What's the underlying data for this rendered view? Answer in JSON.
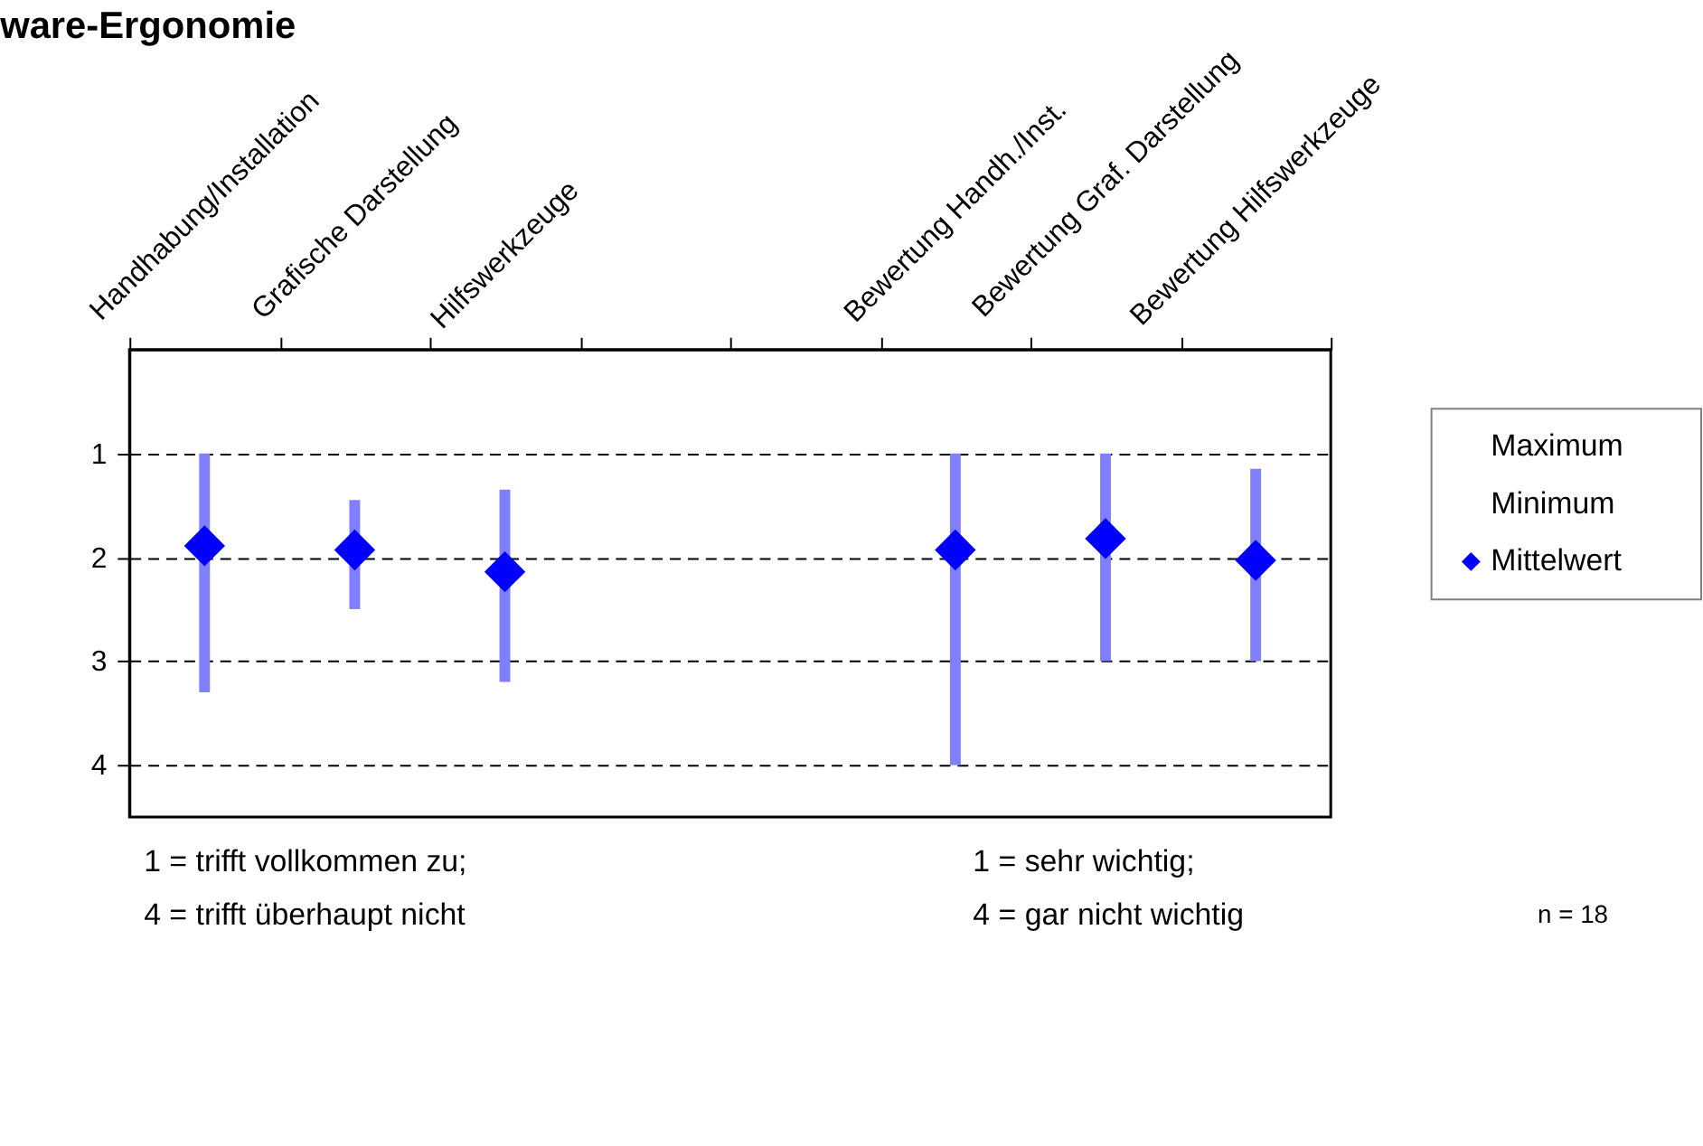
{
  "chart_data": {
    "type": "scatter",
    "title": "ware-Ergonomie",
    "categories": [
      "Handhabung/Installation",
      "Grafische Darstellung",
      "Hilfswerkzeuge",
      null,
      null,
      "Bewertung Handh./Inst.",
      "Bewertung Graf. Darstellung",
      "Bewertung Hilfswerkzeuge"
    ],
    "series": [
      {
        "name": "Mittelwert",
        "color": "#0000ff",
        "marker": "diamond",
        "values": [
          1.89,
          1.93,
          2.14,
          null,
          null,
          1.93,
          1.82,
          2.03
        ],
        "errors": [
          [
            1.0,
            3.3
          ],
          [
            1.45,
            2.5
          ],
          [
            1.35,
            3.2
          ],
          null,
          null,
          [
            1.0,
            4.0
          ],
          [
            1.0,
            3.0
          ],
          [
            1.15,
            3.0
          ]
        ]
      }
    ],
    "ylim": [
      4.5,
      0
    ],
    "yticks": [
      1,
      2,
      3,
      4
    ],
    "grid": "y",
    "legend": "right",
    "annotations": [
      "Maximum",
      "Minimum",
      "1 = trifft vollkommen zu;",
      "4 = trifft überhaupt nicht",
      "1 = sehr wichtig;",
      "4 = gar nicht wichtig",
      "n = 18"
    ]
  }
}
